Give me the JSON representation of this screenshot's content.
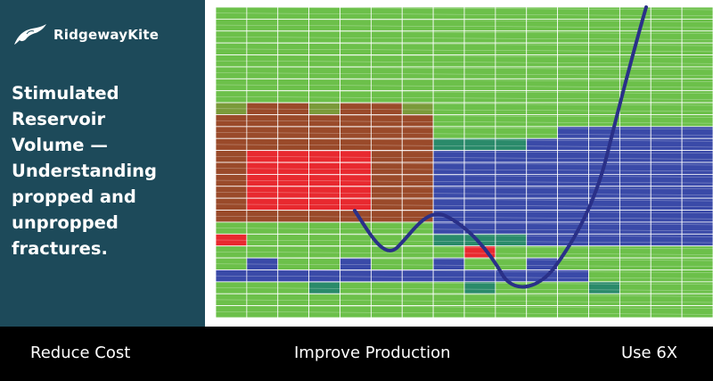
{
  "brand": {
    "name": "RidgewayKite",
    "logo_icon": "kite-bird-icon"
  },
  "headline": {
    "lines": [
      "Stimulated",
      "Reservoir",
      "Volume —",
      "Understanding",
      "propped and",
      "unpropped",
      "fractures."
    ]
  },
  "visualization": {
    "icon": "reservoir-grid-image",
    "colors": {
      "green": "#6cc04a",
      "red": "#e8292f",
      "brown": "#9a4a2a",
      "olive": "#7a9a3a",
      "blue": "#3a4aa8",
      "teal": "#2a8a6a",
      "curve": "#2a3088"
    }
  },
  "footer": {
    "items": [
      "Reduce Cost",
      "Improve Production",
      "Use 6X"
    ]
  },
  "colors": {
    "panel": "#1d4a5a",
    "bar": "#000000",
    "text": "#ffffff"
  }
}
